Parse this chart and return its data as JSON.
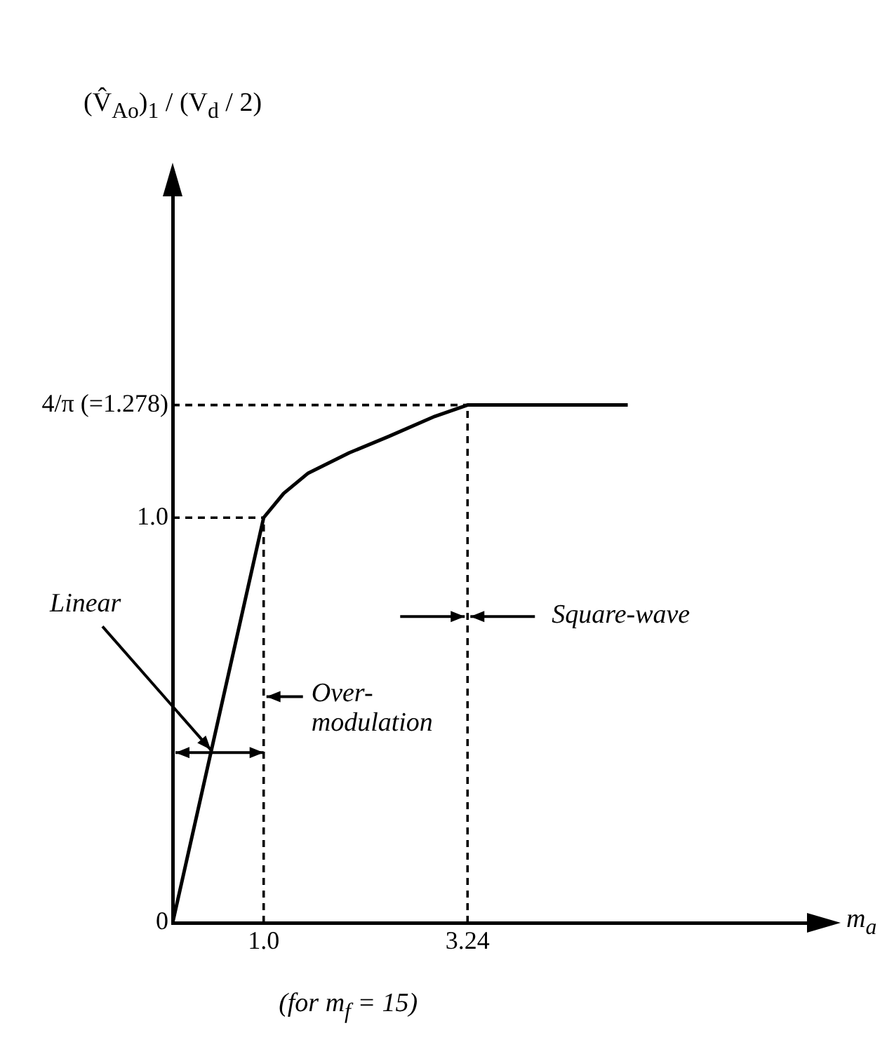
{
  "chart_data": {
    "type": "line",
    "ylabel": "(V̂$_{Ao}$)$_{1}$ / (V$_{d}$ / 2)",
    "xlabel": "m$_{a}$",
    "x": [
      0,
      1,
      1.22,
      1.49,
      1.94,
      2.37,
      2.88,
      3.24,
      5
    ],
    "series": [
      {
        "color": "#000000",
        "values": [
          0,
          1,
          1.06,
          1.11,
          1.16,
          1.2,
          1.25,
          1.278,
          1.278
        ]
      }
    ],
    "xlim": [
      0,
      7
    ],
    "xticks": [
      {
        "value": 1,
        "label": "1.0"
      },
      3.24
    ],
    "ylim": [
      0,
      1.8
    ],
    "yticks": [
      0,
      {
        "value": 1,
        "label": "1.0"
      },
      {
        "value": 1.278,
        "label": "4/π (=1.278)"
      }
    ],
    "ref_lines": [
      {
        "axis": "x",
        "value": 1,
        "line_style": "dashed"
      },
      {
        "axis": "x",
        "value": 3.24,
        "line_style": "dashed"
      },
      {
        "axis": "y",
        "value": 1,
        "line_style": "dashed"
      },
      {
        "axis": "y",
        "value": 1.278,
        "line_style": "dashed"
      }
    ],
    "annotations": [
      {
        "text": "Linear",
        "x": 0.42,
        "y": 0.42
      },
      "Over-modulation",
      "Square-wave",
      "(for m$_{f}$ = 15)"
    ],
    "grid": false,
    "legend": false,
    "marker": "none",
    "line_style": "solid"
  }
}
